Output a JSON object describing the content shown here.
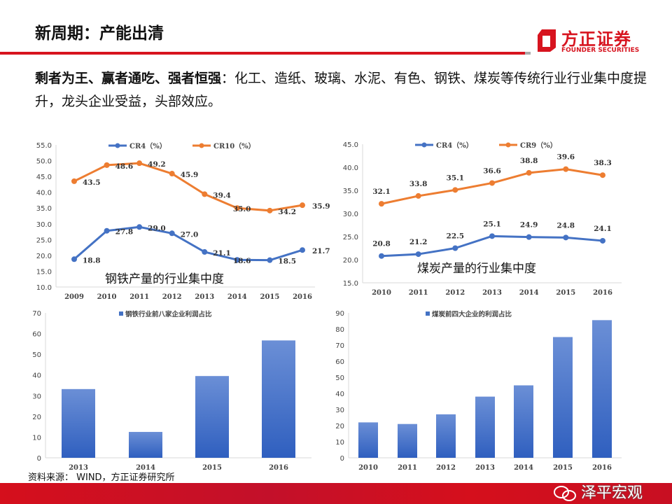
{
  "header": {
    "title": "新周期：产能出清"
  },
  "logo": {
    "cn": "方正证券",
    "en": "FOUNDER SECURITIES"
  },
  "body": {
    "bold": "剩者为王、赢者通吃、强者恒强",
    "rest": "：化工、造纸、玻璃、水泥、有色、钢铁、煤炭等传统行业行业集中度提升，龙头企业受益，头部效应。"
  },
  "source": "资料来源： WIND，方正证券研究所",
  "watermark": "泽平宏观",
  "colors": {
    "accent": "#d7141f",
    "blue": "#4472c4",
    "orange": "#ed7d31"
  },
  "chart_data": [
    {
      "type": "line",
      "annotation": "钢铁产量的行业集中度",
      "categories": [
        "2009",
        "2010",
        "2011",
        "2012",
        "2013",
        "2014",
        "2015",
        "2016"
      ],
      "ylim": [
        10,
        55
      ],
      "yticks": [
        "10.0",
        "15.0",
        "20.0",
        "25.0",
        "30.0",
        "35.0",
        "40.0",
        "45.0",
        "50.0",
        "55.0"
      ],
      "legend": "top",
      "series": [
        {
          "name": "CR4（%）",
          "color": "#4472c4",
          "values": [
            18.8,
            27.8,
            29.0,
            27.0,
            21.1,
            18.6,
            18.5,
            21.7
          ],
          "labels": [
            "18.8",
            "27.8",
            "29.0",
            "27.0",
            "21.1",
            "18.6",
            "18.5",
            "21.7"
          ]
        },
        {
          "name": "CR10（%）",
          "color": "#ed7d31",
          "values": [
            43.5,
            48.6,
            49.2,
            45.9,
            39.4,
            35.0,
            34.2,
            35.9
          ],
          "labels": [
            "43.5",
            "48.6",
            "49.2",
            "45.9",
            "39.4",
            "35.0",
            "34.2",
            "35.9"
          ]
        }
      ]
    },
    {
      "type": "line",
      "annotation": "煤炭产量的行业集中度",
      "categories": [
        "2010",
        "2011",
        "2012",
        "2013",
        "2014",
        "2015",
        "2016"
      ],
      "ylim": [
        15,
        45
      ],
      "yticks": [
        "15.0",
        "20.0",
        "25.0",
        "30.0",
        "35.0",
        "40.0",
        "45.0"
      ],
      "legend": "top",
      "series": [
        {
          "name": "CR4（%）",
          "color": "#4472c4",
          "values": [
            20.8,
            21.2,
            22.5,
            25.1,
            24.9,
            24.8,
            24.1
          ],
          "labels": [
            "20.8",
            "21.2",
            "22.5",
            "25.1",
            "24.9",
            "24.8",
            "24.1"
          ]
        },
        {
          "name": "CR9（%）",
          "color": "#ed7d31",
          "values": [
            32.1,
            33.8,
            35.1,
            36.6,
            38.8,
            39.6,
            38.3
          ],
          "labels": [
            "32.1",
            "33.8",
            "35.1",
            "36.6",
            "38.8",
            "39.6",
            "38.3"
          ]
        }
      ]
    },
    {
      "type": "bar",
      "categories": [
        "2013",
        "2014",
        "2015",
        "2016"
      ],
      "ylim": [
        0,
        70
      ],
      "yticks": [
        "0",
        "10",
        "20",
        "30",
        "40",
        "50",
        "60",
        "70"
      ],
      "legend": "top",
      "series": [
        {
          "name": "钢铁行业前八家企业利润占比",
          "color": "#4472c4",
          "values": [
            33.2,
            12.5,
            39.5,
            56.7
          ]
        }
      ]
    },
    {
      "type": "bar",
      "categories": [
        "2010",
        "2011",
        "2012",
        "2013",
        "2014",
        "2015",
        "2016"
      ],
      "ylim": [
        0,
        90
      ],
      "yticks": [
        "0",
        "10",
        "20",
        "30",
        "40",
        "50",
        "60",
        "70",
        "80",
        "90"
      ],
      "legend": "top",
      "series": [
        {
          "name": "煤炭前四大企业的利润占比",
          "color": "#4472c4",
          "values": [
            22,
            21,
            27,
            38,
            45,
            75,
            85.5
          ]
        }
      ]
    }
  ]
}
